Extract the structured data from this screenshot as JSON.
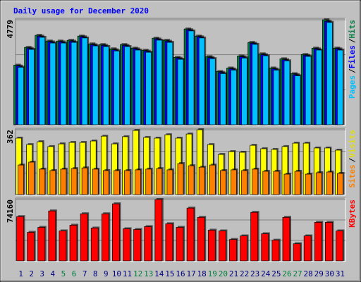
{
  "chart_data": [
    {
      "type": "bar",
      "title": "Daily usage for December 2020",
      "ylim": [
        0,
        4779
      ],
      "yticks": [
        4779
      ],
      "legend_separator": "/",
      "series": [
        {
          "name": "Pages",
          "color": "#00c0ff",
          "values": [
            2620,
            3430,
            3980,
            3720,
            3720,
            3750,
            3950,
            3590,
            3560,
            3360,
            3560,
            3400,
            3300,
            3850,
            3750,
            2980,
            4270,
            3950,
            3010,
            2330,
            2490,
            3040,
            3660,
            3140,
            2490,
            2910,
            2230,
            3110,
            3400,
            4660,
            3400
          ]
        },
        {
          "name": "Files",
          "color": "#0000ff",
          "values": [
            2670,
            3480,
            4030,
            3770,
            3770,
            3800,
            4000,
            3640,
            3610,
            3410,
            3610,
            3450,
            3350,
            3900,
            3800,
            3030,
            4320,
            4000,
            3060,
            2380,
            2540,
            3090,
            3710,
            3190,
            2540,
            2960,
            2280,
            3160,
            3450,
            4710,
            3450
          ]
        },
        {
          "name": "Hits",
          "color": "#008040",
          "values": [
            2712,
            3520,
            4069,
            3810,
            3810,
            3843,
            4036,
            3681,
            3649,
            3455,
            3649,
            3487,
            3390,
            3939,
            3843,
            3068,
            4359,
            4036,
            3100,
            2422,
            2583,
            3132,
            3746,
            3229,
            2583,
            3003,
            2325,
            3197,
            3487,
            4779,
            3487
          ]
        }
      ]
    },
    {
      "type": "bar",
      "ylim": [
        0,
        362
      ],
      "yticks": [
        362
      ],
      "legend_separator": "/",
      "series": [
        {
          "name": "Sites",
          "color": "#ff8000",
          "values": [
            165,
            181,
            142,
            134,
            142,
            145,
            149,
            142,
            134,
            134,
            134,
            138,
            142,
            145,
            138,
            173,
            161,
            153,
            165,
            134,
            138,
            134,
            142,
            130,
            130,
            114,
            130,
            114,
            122,
            126,
            118
          ]
        },
        {
          "name": "Visits",
          "color": "#ffff00",
          "values": [
            315,
            279,
            295,
            268,
            283,
            291,
            291,
            299,
            326,
            283,
            323,
            358,
            319,
            315,
            334,
            315,
            338,
            362,
            279,
            224,
            240,
            236,
            275,
            256,
            252,
            268,
            287,
            287,
            260,
            260,
            248
          ]
        }
      ]
    },
    {
      "type": "bar",
      "ylim": [
        0,
        74160
      ],
      "yticks": [
        74160
      ],
      "series": [
        {
          "name": "KBytes",
          "color": "#ff0000",
          "values": [
            53464,
            34494,
            40530,
            60363,
            36218,
            43117,
            56914,
            39667,
            56914,
            68986,
            38805,
            37943,
            41392,
            74160,
            44842,
            40530,
            63812,
            52602,
            37080,
            36218,
            25870,
            30182,
            58638,
            32769,
            25007,
            52602,
            20696,
            30182,
            46566,
            46566,
            36218
          ]
        }
      ],
      "categories": [
        "1",
        "2",
        "3",
        "4",
        "5",
        "6",
        "7",
        "8",
        "9",
        "10",
        "11",
        "12",
        "13",
        "14",
        "15",
        "16",
        "17",
        "18",
        "19",
        "20",
        "21",
        "22",
        "23",
        "24",
        "25",
        "26",
        "27",
        "28",
        "29",
        "30",
        "31"
      ],
      "category_colors": [
        "#000080",
        "#000080",
        "#000080",
        "#000080",
        "#008040",
        "#008040",
        "#000080",
        "#000080",
        "#000080",
        "#000080",
        "#000080",
        "#008040",
        "#008040",
        "#000080",
        "#000080",
        "#000080",
        "#000080",
        "#000080",
        "#008040",
        "#008040",
        "#000080",
        "#000080",
        "#000080",
        "#000080",
        "#000080",
        "#008040",
        "#008040",
        "#000080",
        "#000080",
        "#000080",
        "#000080"
      ]
    }
  ]
}
